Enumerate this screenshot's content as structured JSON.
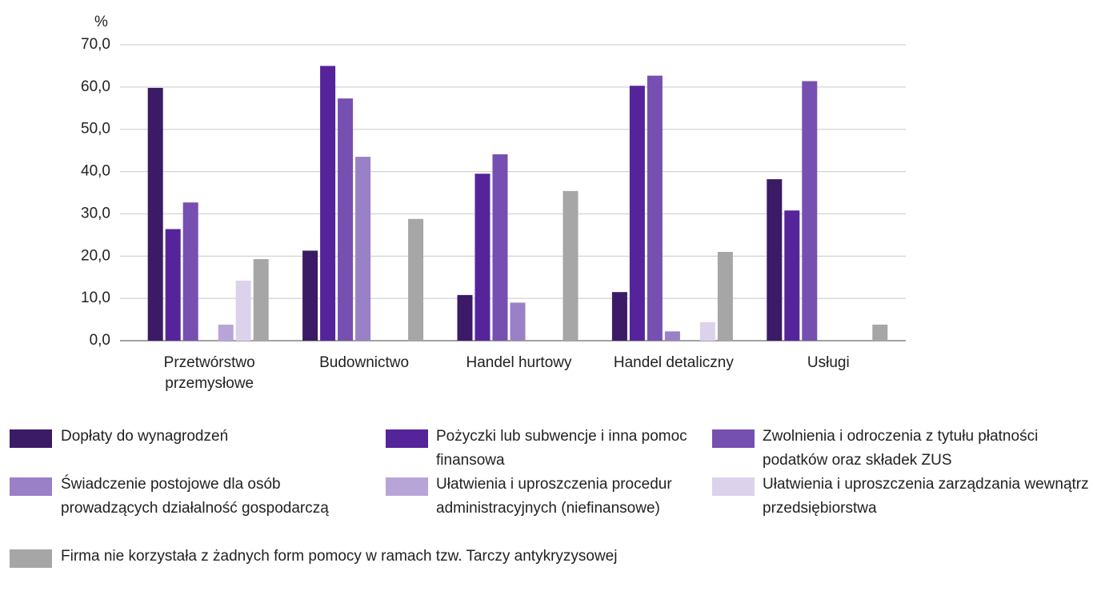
{
  "chart_data": {
    "type": "bar",
    "y_unit": "%",
    "categories": [
      "Przetwórstwo przemysłowe",
      "Budownictwo",
      "Handel hurtowy",
      "Handel detaliczny",
      "Usługi"
    ],
    "series": [
      {
        "name": "Dopłaty do wynagrodzeń",
        "color": "#3b1a66",
        "values": [
          59.8,
          21.3,
          10.8,
          11.5,
          38.2
        ]
      },
      {
        "name": "Pożyczki lub subwencje i inna pomoc finansowa",
        "color": "#55249a",
        "values": [
          26.4,
          65.0,
          39.5,
          60.3,
          30.8
        ]
      },
      {
        "name": "Zwolnienia i odroczenia z tytułu płatności podatków oraz składek ZUS",
        "color": "#7650b0",
        "values": [
          32.7,
          57.3,
          44.1,
          62.7,
          61.4
        ]
      },
      {
        "name": "Świadczenie postojowe dla osób prowadzących działalność gospodarczą",
        "color": "#9a80c6",
        "values": [
          0,
          43.5,
          9.0,
          2.2,
          0
        ]
      },
      {
        "name": "Ułatwienia i uproszczenia procedur administracyjnych (niefinansowe)",
        "color": "#b8a5d8",
        "values": [
          3.8,
          0,
          0,
          0,
          0
        ]
      },
      {
        "name": "Ułatwienia i uproszczenia zarządzania wewnątrz przedsiębiorstwa",
        "color": "#dcd2ec",
        "values": [
          14.2,
          0,
          0,
          4.4,
          0
        ]
      },
      {
        "name": "Firma nie korzystała z żadnych form pomocy w ramach tzw. Tarczy antykryzysowej",
        "color": "#a6a6a6",
        "values": [
          19.3,
          28.8,
          35.4,
          21.0,
          3.8
        ]
      }
    ],
    "ylim": [
      0,
      70
    ],
    "yticks": [
      {
        "value": 0,
        "label": "0,0"
      },
      {
        "value": 10,
        "label": "10,0"
      },
      {
        "value": 20,
        "label": "20,0"
      },
      {
        "value": 30,
        "label": "30,0"
      },
      {
        "value": 40,
        "label": "40,0"
      },
      {
        "value": 50,
        "label": "50,0"
      },
      {
        "value": 60,
        "label": "60,0"
      },
      {
        "value": 70,
        "label": "70,0"
      }
    ],
    "grid": true
  }
}
